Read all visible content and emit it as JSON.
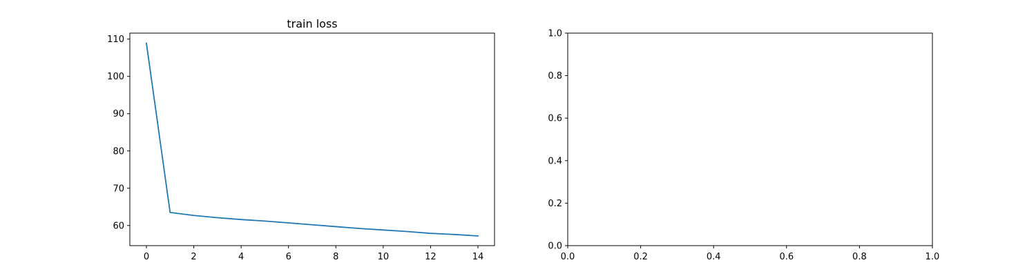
{
  "chart_data": [
    {
      "type": "line",
      "title": "train loss",
      "xlabel": "",
      "ylabel": "",
      "xlim": [
        -0.7,
        14.7
      ],
      "ylim": [
        54.6,
        111.6
      ],
      "x_ticks": [
        0,
        2,
        4,
        6,
        8,
        10,
        12,
        14
      ],
      "y_ticks": [
        60,
        70,
        80,
        90,
        100,
        110
      ],
      "grid": false,
      "series": [
        {
          "color": "#1f77b4",
          "x": [
            0,
            1,
            2,
            3,
            4,
            5,
            6,
            7,
            8,
            9,
            10,
            11,
            12,
            13,
            14
          ],
          "y": [
            108.9,
            63.5,
            62.7,
            62.1,
            61.6,
            61.2,
            60.7,
            60.2,
            59.7,
            59.2,
            58.8,
            58.4,
            57.9,
            57.6,
            57.2
          ]
        }
      ]
    },
    {
      "type": "line",
      "title": "",
      "xlabel": "",
      "ylabel": "",
      "xlim": [
        0,
        1
      ],
      "ylim": [
        0,
        1
      ],
      "x_ticks": [
        "0.0",
        "0.2",
        "0.4",
        "0.6",
        "0.8",
        "1.0"
      ],
      "y_ticks": [
        "0.0",
        "0.2",
        "0.4",
        "0.6",
        "0.8",
        "1.0"
      ],
      "grid": false,
      "series": []
    }
  ]
}
